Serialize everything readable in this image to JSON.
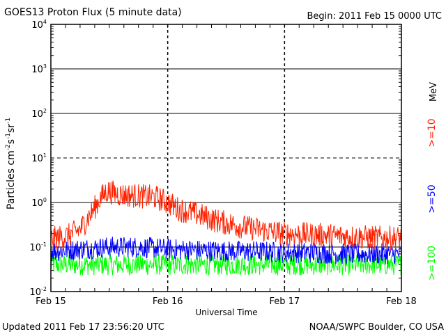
{
  "chart_data": {
    "type": "line",
    "title": "GOES13 Proton Flux (5 minute data)",
    "begin_label": "Begin: 2011 Feb 15 0000 UTC",
    "xlabel": "Universal Time",
    "ylabel_main": "Particles cm",
    "ylabel_exp1": "-2",
    "ylabel_s": "s",
    "ylabel_exp2": "-1",
    "ylabel_sr": "sr",
    "ylabel_exp3": "-1",
    "yscale": "log",
    "ylim": [
      0.01,
      10000
    ],
    "xlim": [
      "Feb 15",
      "Feb 18"
    ],
    "x_ticks": [
      "Feb 15",
      "Feb 16",
      "Feb 17",
      "Feb 18"
    ],
    "y_ticks": [
      {
        "base": "10",
        "exp": "-2"
      },
      {
        "base": "10",
        "exp": "-1"
      },
      {
        "base": "10",
        "exp": "0"
      },
      {
        "base": "10",
        "exp": "1"
      },
      {
        "base": "10",
        "exp": "2"
      },
      {
        "base": "10",
        "exp": "3"
      },
      {
        "base": "10",
        "exp": "4"
      }
    ],
    "unit_label": "MeV",
    "legend_position": "right",
    "series": [
      {
        "name": ">=10",
        "color": "#ff2200",
        "x_days": [
          0,
          0.15,
          0.25,
          0.35,
          0.42,
          0.48,
          0.6,
          0.75,
          0.9,
          1.0,
          1.1,
          1.25,
          1.4,
          1.6,
          1.8,
          2.0,
          2.2,
          2.4,
          2.6,
          2.8,
          3.0
        ],
        "values": [
          0.15,
          0.18,
          0.25,
          0.6,
          1.2,
          1.8,
          1.5,
          1.4,
          1.3,
          1.0,
          0.7,
          0.55,
          0.4,
          0.3,
          0.24,
          0.2,
          0.19,
          0.18,
          0.17,
          0.16,
          0.16
        ]
      },
      {
        "name": ">=50",
        "color": "#0000ff",
        "x_days": [
          0,
          0.25,
          0.5,
          0.75,
          1.0,
          1.25,
          1.5,
          1.75,
          2.0,
          2.25,
          2.5,
          2.75,
          3.0
        ],
        "values": [
          0.08,
          0.09,
          0.1,
          0.1,
          0.09,
          0.085,
          0.08,
          0.08,
          0.075,
          0.075,
          0.07,
          0.07,
          0.07
        ]
      },
      {
        "name": ">=100",
        "color": "#00ff00",
        "x_days": [
          0,
          0.5,
          1.0,
          1.5,
          2.0,
          2.5,
          3.0
        ],
        "values": [
          0.04,
          0.04,
          0.04,
          0.04,
          0.04,
          0.04,
          0.04
        ]
      }
    ]
  },
  "footer": {
    "updated": "Updated 2011 Feb 17 23:56:20 UTC",
    "source": "NOAA/SWPC Boulder, CO USA"
  }
}
